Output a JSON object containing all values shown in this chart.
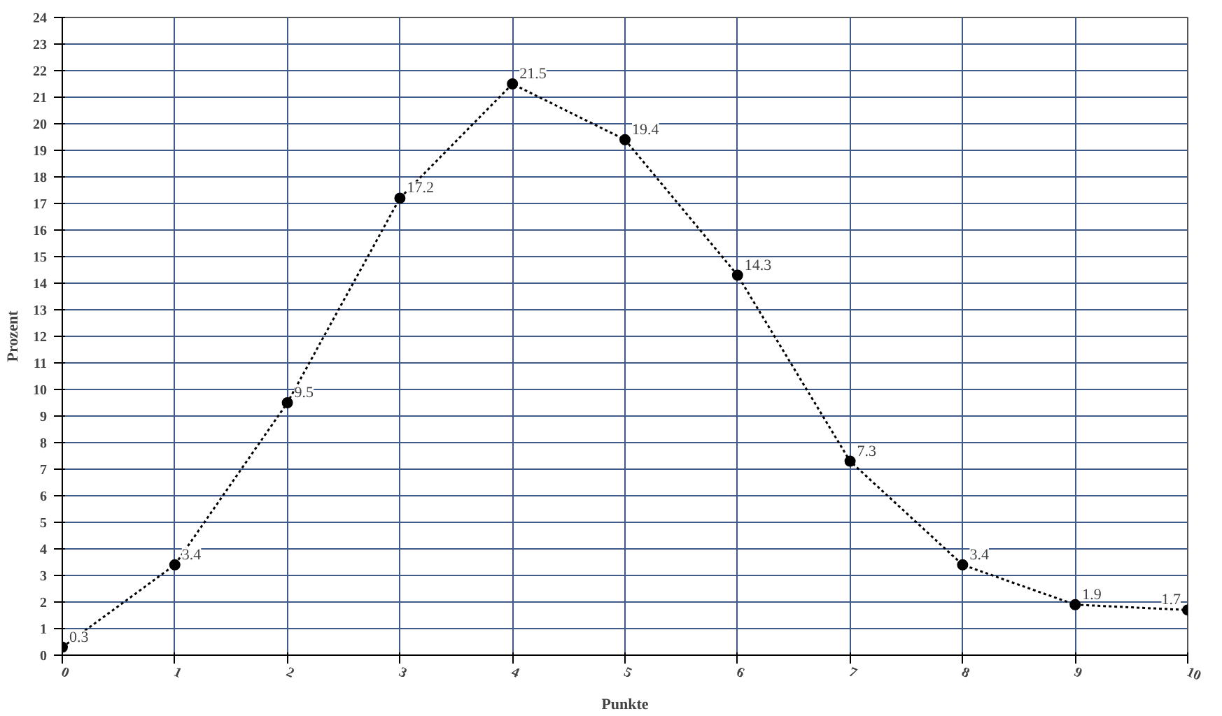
{
  "chart_data": {
    "type": "line",
    "xlabel": "Punkte",
    "ylabel": "Prozent",
    "x": [
      0,
      1,
      2,
      3,
      4,
      5,
      6,
      7,
      8,
      9,
      10
    ],
    "values": [
      0.3,
      3.4,
      9.5,
      17.2,
      21.5,
      19.4,
      14.3,
      7.3,
      3.4,
      1.9,
      1.7
    ],
    "color": "#000000",
    "xlim": [
      0,
      10
    ],
    "xticks": [
      0,
      1,
      2,
      3,
      4,
      5,
      6,
      7,
      8,
      9,
      10
    ],
    "ylim": [
      0,
      24
    ],
    "yticks": [
      0,
      1,
      2,
      3,
      4,
      5,
      6,
      7,
      8,
      9,
      10,
      11,
      12,
      13,
      14,
      15,
      16,
      17,
      18,
      19,
      20,
      21,
      22,
      23,
      24
    ],
    "grid": true,
    "marker": "circle",
    "line_style": "dotted",
    "data_labels": true
  }
}
